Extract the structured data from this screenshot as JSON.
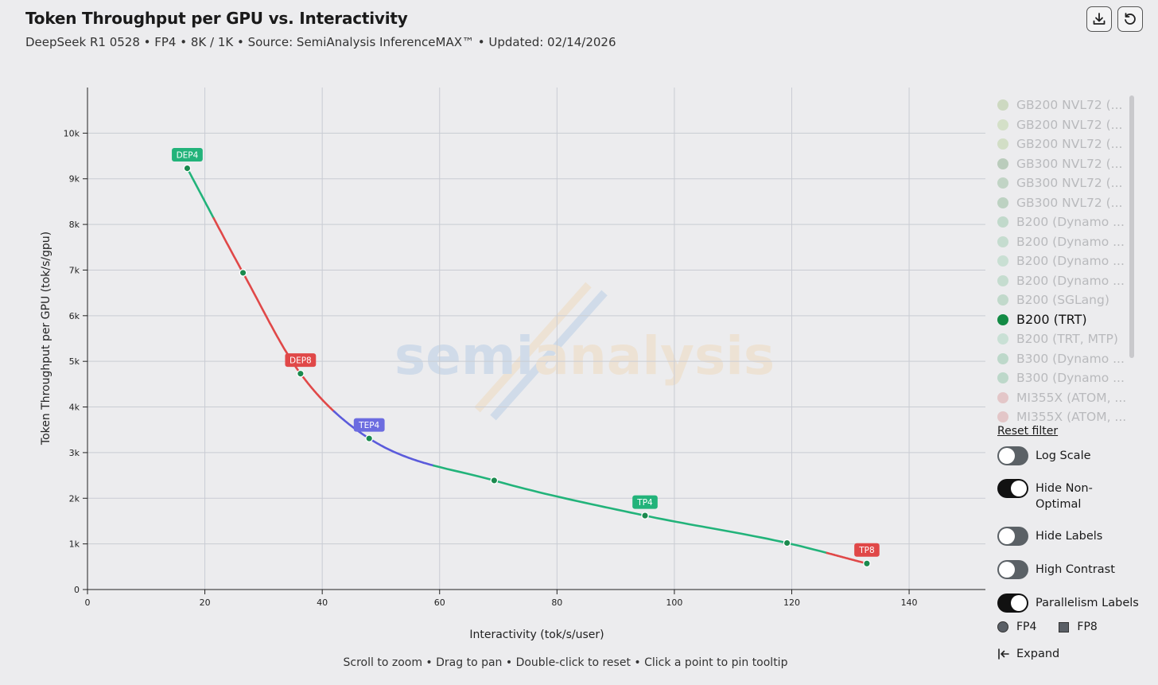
{
  "header": {
    "title": "Token Throughput per GPU vs. Interactivity",
    "subtitle": "DeepSeek R1 0528 • FP4 • 8K / 1K • Source: SemiAnalysis InferenceMAX™ • Updated: 02/14/2026"
  },
  "toolbar": {
    "download_icon": "download-icon",
    "reset_icon": "reset-icon"
  },
  "watermark": {
    "part1": "semi",
    "part2": "analysis"
  },
  "chart_data": {
    "type": "line",
    "xlabel": "Interactivity (tok/s/user)",
    "ylabel": "Token Throughput per GPU (tok/s/gpu)",
    "xlim": [
      0,
      153
    ],
    "ylim": [
      0,
      11000
    ],
    "xticks": [
      0,
      20,
      40,
      60,
      80,
      100,
      120,
      140
    ],
    "yticks": [
      0,
      1000,
      2000,
      3000,
      4000,
      5000,
      6000,
      7000,
      8000,
      9000,
      10000
    ],
    "ytick_labels": [
      "0",
      "1k",
      "2k",
      "3k",
      "4k",
      "5k",
      "6k",
      "7k",
      "8k",
      "9k",
      "10k"
    ],
    "grid": true,
    "series": [
      {
        "name": "B200 (TRT)",
        "color": "#1b8a4e",
        "points": [
          {
            "x": 17,
            "y": 9230
          },
          {
            "x": 26.5,
            "y": 6940
          },
          {
            "x": 36.3,
            "y": 4730
          },
          {
            "x": 48,
            "y": 3310
          },
          {
            "x": 69.3,
            "y": 2390
          },
          {
            "x": 95,
            "y": 1620
          },
          {
            "x": 119.2,
            "y": 1020
          },
          {
            "x": 132.8,
            "y": 570
          }
        ],
        "segments": [
          {
            "from": 17,
            "to": 21.5,
            "color": "#22b37a",
            "label": "DEP4"
          },
          {
            "from": 21.5,
            "to": 36.3,
            "color": "#e04848",
            "label": "DEP8"
          },
          {
            "from": 36.3,
            "to": 42,
            "color": "#e04848",
            "label": "DEP8"
          },
          {
            "from": 42,
            "to": 59,
            "color": "#5b5bdb",
            "label": "TEP4"
          },
          {
            "from": 59,
            "to": 126,
            "color": "#22b37a",
            "label": "TP4"
          },
          {
            "from": 126,
            "to": 132.8,
            "color": "#e04848",
            "label": "TP8"
          }
        ]
      }
    ],
    "point_labels": [
      {
        "text": "DEP4",
        "x": 17,
        "y": 9230,
        "color": "#22b37a"
      },
      {
        "text": "DEP8",
        "x": 36.3,
        "y": 4730,
        "color": "#e04848"
      },
      {
        "text": "TEP4",
        "x": 48,
        "y": 3310,
        "color": "#6c6ce0"
      },
      {
        "text": "TP4",
        "x": 95,
        "y": 1620,
        "color": "#22b37a"
      },
      {
        "text": "TP8",
        "x": 132.8,
        "y": 570,
        "color": "#e04848"
      }
    ]
  },
  "legend": {
    "items": [
      {
        "label": "GB200 NVL72 (...",
        "color": "#a9c48a",
        "active": false
      },
      {
        "label": "GB200 NVL72 (...",
        "color": "#b7d29a",
        "active": false
      },
      {
        "label": "GB200 NVL72 (...",
        "color": "#b4cf95",
        "active": false
      },
      {
        "label": "GB300 NVL72 (...",
        "color": "#7ea77e",
        "active": false
      },
      {
        "label": "GB300 NVL72 (...",
        "color": "#8eb993",
        "active": false
      },
      {
        "label": "GB300 NVL72 (...",
        "color": "#84b48c",
        "active": false
      },
      {
        "label": "B200 (Dynamo ...",
        "color": "#8fc4a0",
        "active": false
      },
      {
        "label": "B200 (Dynamo ...",
        "color": "#97c9a8",
        "active": false
      },
      {
        "label": "B200 (Dynamo ...",
        "color": "#9fd0b2",
        "active": false
      },
      {
        "label": "B200 (Dynamo ...",
        "color": "#96c9a9",
        "active": false
      },
      {
        "label": "B200 (SGLang)",
        "color": "#8ec39f",
        "active": false
      },
      {
        "label": "B200 (TRT)",
        "color": "#128a44",
        "active": true
      },
      {
        "label": "B200 (TRT, MTP)",
        "color": "#9fd3b6",
        "active": false
      },
      {
        "label": "B300 (Dynamo ...",
        "color": "#86c09d",
        "active": false
      },
      {
        "label": "B300 (Dynamo ...",
        "color": "#86c09d",
        "active": false
      },
      {
        "label": "MI355X (ATOM, ...",
        "color": "#d99a9a",
        "active": false
      },
      {
        "label": "MI355X (ATOM, ...",
        "color": "#d99a9a",
        "active": false
      }
    ],
    "reset_filter": "Reset filter"
  },
  "controls": {
    "log_scale": {
      "label": "Log Scale",
      "on": false
    },
    "hide_non_optimal": {
      "label_line1": "Hide Non-",
      "label_line2": "Optimal",
      "on": true
    },
    "hide_labels": {
      "label": "Hide Labels",
      "on": false
    },
    "high_contrast": {
      "label": "High Contrast",
      "on": false
    },
    "parallelism_labels": {
      "label": "Parallelism Labels",
      "on": true
    }
  },
  "shape_legend": {
    "fp4": "FP4",
    "fp8": "FP8"
  },
  "expand": {
    "label": "Expand",
    "icon": "expand-left-icon"
  },
  "hint": "Scroll to zoom • Drag to pan • Double-click to reset • Click a point to pin tooltip"
}
